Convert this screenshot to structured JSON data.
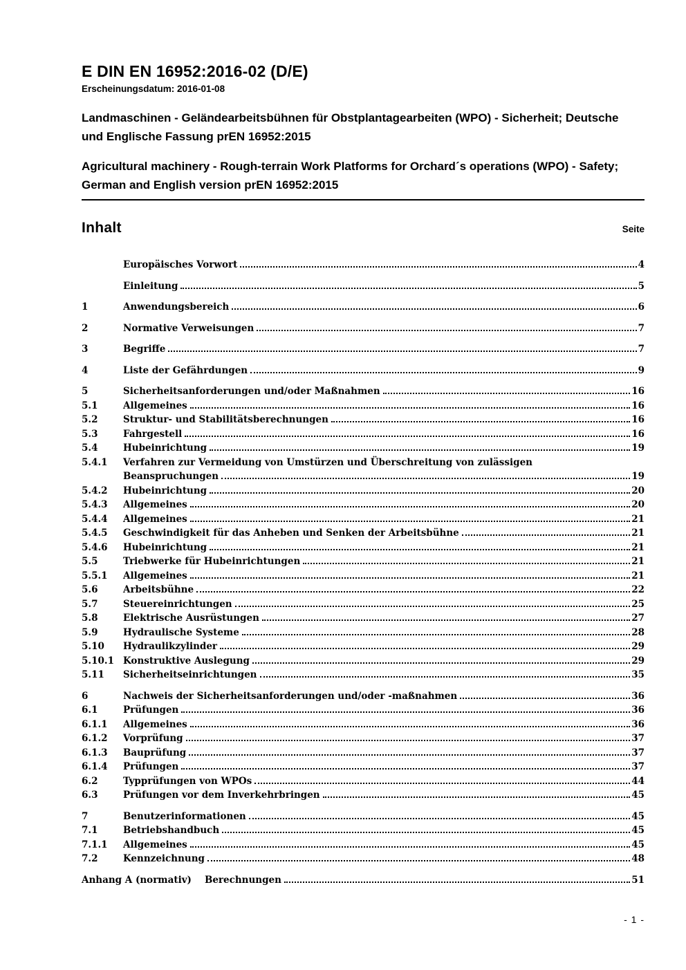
{
  "header": {
    "doc_number": "E DIN EN 16952:2016-02 (D/E)",
    "release_date": "Erscheinungsdatum: 2016-01-08",
    "title_de": "Landmaschinen - Geländearbeitsbühnen für Obstplantagearbeiten (WPO) - Sicherheit; Deutsche und Englische Fassung prEN 16952:2015",
    "title_en": "Agricultural machinery - Rough-terrain Work Platforms for Orchard´s operations (WPO) - Safety; German and English version prEN 16952:2015"
  },
  "toc": {
    "heading": "Inhalt",
    "page_col_label": "Seite",
    "entries": [
      {
        "num": "",
        "title": "Europäisches Vorwort",
        "page": "4",
        "gap": false
      },
      {
        "num": "",
        "title": "Einleitung",
        "page": "5",
        "gap": true
      },
      {
        "num": "1",
        "title": "Anwendungsbereich",
        "page": "6",
        "gap": true
      },
      {
        "num": "2",
        "title": "Normative Verweisungen",
        "page": "7",
        "gap": true
      },
      {
        "num": "3",
        "title": "Begriffe",
        "page": "7",
        "gap": true
      },
      {
        "num": "4",
        "title": "Liste der Gefährdungen",
        "page": "9",
        "gap": true
      },
      {
        "num": "5",
        "title": "Sicherheitsanforderungen und/oder Maßnahmen",
        "page": "16",
        "gap": true
      },
      {
        "num": "5.1",
        "title": "Allgemeines",
        "page": "16"
      },
      {
        "num": "5.2",
        "title": "Struktur- und Stabilitätsberechnungen",
        "page": "16"
      },
      {
        "num": "5.3",
        "title": "Fahrgestell",
        "page": "16"
      },
      {
        "num": "5.4",
        "title": "Hubeinrichtung",
        "page": "19"
      },
      {
        "num": "5.4.1",
        "title": "Verfahren zur Vermeidung von Umstürzen und Überschreitung von zulässigen",
        "title2": "Beanspruchungen",
        "page": "19"
      },
      {
        "num": "5.4.2",
        "title": "Hubeinrichtung",
        "page": "20"
      },
      {
        "num": "5.4.3",
        "title": "Allgemeines",
        "page": "20"
      },
      {
        "num": "5.4.4",
        "title": "Allgemeines",
        "page": "21"
      },
      {
        "num": "5.4.5",
        "title": "Geschwindigkeit für das Anheben und Senken der Arbeitsbühne",
        "page": "21"
      },
      {
        "num": "5.4.6",
        "title": "Hubeinrichtung",
        "page": "21"
      },
      {
        "num": "5.5",
        "title": "Triebwerke für Hubeinrichtungen",
        "page": "21"
      },
      {
        "num": "5.5.1",
        "title": "Allgemeines",
        "page": "21"
      },
      {
        "num": "5.6",
        "title": "Arbeitsbühne",
        "page": "22"
      },
      {
        "num": "5.7",
        "title": "Steuereinrichtungen",
        "page": "25"
      },
      {
        "num": "5.8",
        "title": "Elektrische Ausrüstungen",
        "page": "27"
      },
      {
        "num": "5.9",
        "title": "Hydraulische Systeme",
        "page": "28"
      },
      {
        "num": "5.10",
        "title": "Hydraulikzylinder",
        "page": "29"
      },
      {
        "num": "5.10.1",
        "title": "Konstruktive Auslegung",
        "page": "29"
      },
      {
        "num": "5.11",
        "title": "Sicherheitseinrichtungen",
        "page": "35"
      },
      {
        "num": "6",
        "title": "Nachweis der Sicherheitsanforderungen und/oder -maßnahmen",
        "page": "36",
        "gap": true
      },
      {
        "num": "6.1",
        "title": "Prüfungen",
        "page": "36"
      },
      {
        "num": "6.1.1",
        "title": "Allgemeines",
        "page": "36"
      },
      {
        "num": "6.1.2",
        "title": "Vorprüfung",
        "page": "37"
      },
      {
        "num": "6.1.3",
        "title": "Bauprüfung",
        "page": "37"
      },
      {
        "num": "6.1.4",
        "title": "Prüfungen",
        "page": "37"
      },
      {
        "num": "6.2",
        "title": "Typprüfungen von WPOs",
        "page": "44"
      },
      {
        "num": "6.3",
        "title": "Prüfungen vor dem Inverkehrbringen",
        "page": "45"
      },
      {
        "num": "7",
        "title": "Benutzerinformationen",
        "page": "45",
        "gap": true
      },
      {
        "num": "7.1",
        "title": "Betriebshandbuch",
        "page": "45"
      },
      {
        "num": "7.1.1",
        "title": "Allgemeines",
        "page": "45"
      },
      {
        "num": "7.2",
        "title": "Kennzeichnung",
        "page": "48"
      },
      {
        "num": "Anhang A (normativ)",
        "title": "Berechnungen",
        "page": "51",
        "gap": true,
        "annex": true
      }
    ]
  },
  "footer": {
    "page_indicator": "- 1 -"
  }
}
